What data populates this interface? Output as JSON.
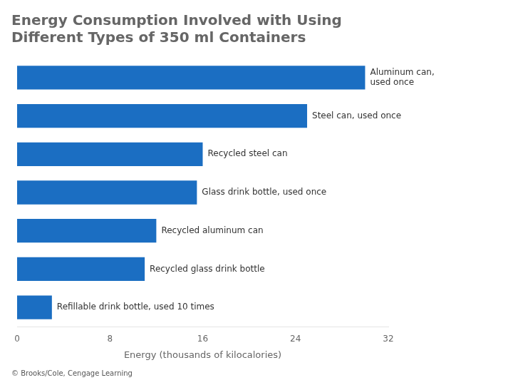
{
  "chart_data": {
    "type": "bar",
    "orientation": "horizontal",
    "title": "Energy Consumption Involved with Using\nDifferent Types of 350 ml Containers",
    "categories": [
      "Refillable drink bottle, used 10 times",
      "Recycled glass drink bottle",
      "Recycled aluminum can",
      "Glass drink bottle, used once",
      "Recycled steel can",
      "Steel can, used once",
      "Aluminum can,\nused once"
    ],
    "values": [
      3.0,
      11.0,
      12.0,
      15.5,
      16.0,
      25.0,
      30.0
    ],
    "color": "#1B6EC2",
    "xlabel": "Energy (thousands of kilocalories)",
    "xlim": [
      0,
      32
    ],
    "xticks": [
      0,
      8,
      16,
      24,
      32
    ],
    "grid": false,
    "tick_labels": "x",
    "footnote": "© Brooks/Cole, Cengage Learning"
  }
}
